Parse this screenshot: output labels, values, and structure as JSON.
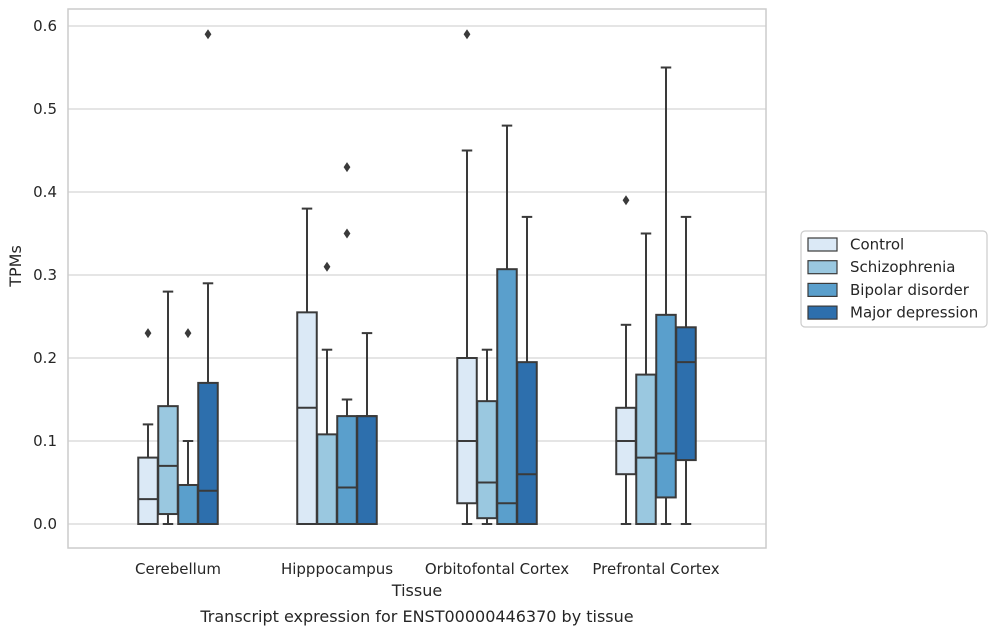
{
  "chart_data": {
    "type": "boxplot",
    "xlabel": "Tissue",
    "ylabel": "TPMs",
    "caption": "Transcript expression for ENST00000446370 by tissue",
    "ylim": [
      -0.03,
      0.62
    ],
    "yticks": [
      "0.0",
      "0.1",
      "0.2",
      "0.3",
      "0.4",
      "0.5",
      "0.6"
    ],
    "grid": "horizontal",
    "legend_position": "right",
    "categories": [
      "Cerebellum",
      "Hipppocampus",
      "Orbitofontal Cortex",
      "Prefrontal Cortex"
    ],
    "series": [
      {
        "name": "Control",
        "color": "#dbe9f6",
        "boxes": [
          {
            "whislo": 0.0,
            "q1": 0.0,
            "med": 0.03,
            "q3": 0.08,
            "whishi": 0.12,
            "fliers": [
              0.23
            ]
          },
          {
            "whislo": 0.0,
            "q1": 0.0,
            "med": 0.14,
            "q3": 0.255,
            "whishi": 0.38,
            "fliers": []
          },
          {
            "whislo": 0.0,
            "q1": 0.025,
            "med": 0.1,
            "q3": 0.2,
            "whishi": 0.45,
            "fliers": [
              0.59
            ]
          },
          {
            "whislo": 0.0,
            "q1": 0.06,
            "med": 0.1,
            "q3": 0.14,
            "whishi": 0.24,
            "fliers": [
              0.39
            ]
          }
        ]
      },
      {
        "name": "Schizophrenia",
        "color": "#9ac8e0",
        "boxes": [
          {
            "whislo": 0.0,
            "q1": 0.012,
            "med": 0.07,
            "q3": 0.142,
            "whishi": 0.28,
            "fliers": []
          },
          {
            "whislo": 0.0,
            "q1": 0.0,
            "med": 0.0,
            "q3": 0.108,
            "whishi": 0.21,
            "fliers": [
              0.31
            ]
          },
          {
            "whislo": 0.0,
            "q1": 0.007,
            "med": 0.05,
            "q3": 0.148,
            "whishi": 0.21,
            "fliers": []
          },
          {
            "whislo": 0.0,
            "q1": 0.0,
            "med": 0.08,
            "q3": 0.18,
            "whishi": 0.35,
            "fliers": []
          }
        ]
      },
      {
        "name": "Bipolar disorder",
        "color": "#5a9fcc",
        "boxes": [
          {
            "whislo": 0.0,
            "q1": 0.0,
            "med": 0.0,
            "q3": 0.047,
            "whishi": 0.1,
            "fliers": [
              0.23
            ]
          },
          {
            "whislo": 0.0,
            "q1": 0.0,
            "med": 0.044,
            "q3": 0.13,
            "whishi": 0.15,
            "fliers": [
              0.35,
              0.43
            ]
          },
          {
            "whislo": 0.0,
            "q1": 0.0,
            "med": 0.025,
            "q3": 0.307,
            "whishi": 0.48,
            "fliers": []
          },
          {
            "whislo": 0.0,
            "q1": 0.032,
            "med": 0.085,
            "q3": 0.252,
            "whishi": 0.55,
            "fliers": []
          }
        ]
      },
      {
        "name": "Major depression",
        "color": "#2d6fad",
        "boxes": [
          {
            "whislo": 0.0,
            "q1": 0.0,
            "med": 0.04,
            "q3": 0.17,
            "whishi": 0.29,
            "fliers": [
              0.59
            ]
          },
          {
            "whislo": 0.0,
            "q1": 0.0,
            "med": 0.13,
            "q3": 0.13,
            "whishi": 0.23,
            "fliers": []
          },
          {
            "whislo": 0.0,
            "q1": 0.0,
            "med": 0.06,
            "q3": 0.195,
            "whishi": 0.37,
            "fliers": []
          },
          {
            "whislo": 0.0,
            "q1": 0.077,
            "med": 0.195,
            "q3": 0.237,
            "whishi": 0.37,
            "fliers": []
          }
        ]
      }
    ]
  }
}
